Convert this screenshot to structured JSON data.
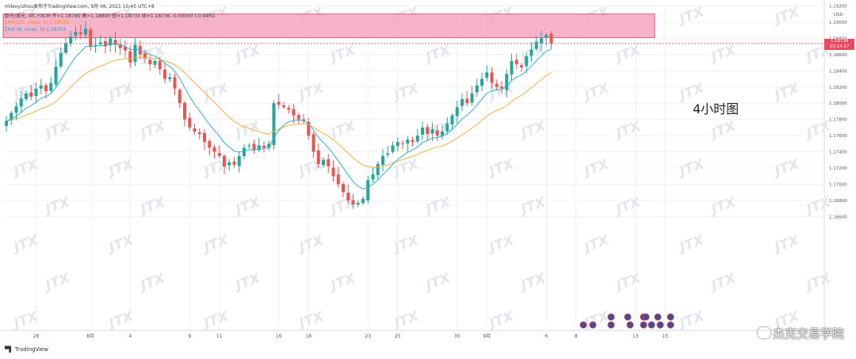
{
  "header": {
    "line1": "mileoyizhou发布于TradingView.com,  9月 06, 2021 10:45 UTC+8",
    "line2": "欧元/美元, 4h, FXCM  开=1.18780  高=1.18800  低=1.18733  收=1.18736  -0.00050 (-0.04%)",
    "line3": "EMA (21, close, 0)  1.18556",
    "line4": "EMA (8, close, 0)  1.18754"
  },
  "annotation": "4小时图",
  "watermark_brand": "杰克交易学院",
  "tv_logo": "TradingView",
  "currency_label": "USD",
  "price_tag": {
    "price": "1.18736",
    "countdown": "03:14:17"
  },
  "colors": {
    "up": "#26a69a",
    "down": "#ef5350",
    "ema_fast": "#2ab3c9",
    "ema_slow": "#f5b041",
    "zone_fill": "#f4a6c0",
    "zone_stroke": "#d13a66",
    "price_line": "#e84a5f",
    "grid": "#eef1f5"
  },
  "chart_data": {
    "type": "candlestick",
    "ylim": [
      1.1655,
      1.1935
    ],
    "y_ticks": [
      "1.19200",
      "1.19000",
      "1.18800",
      "1.18600",
      "1.18400",
      "1.18200",
      "1.18000",
      "1.17800",
      "1.17600",
      "1.17400",
      "1.17200",
      "1.17000",
      "1.16800",
      "1.16600"
    ],
    "x_ticks": [
      {
        "i": 6,
        "label": "28"
      },
      {
        "i": 17,
        "label": "8月"
      },
      {
        "i": 25,
        "label": "4"
      },
      {
        "i": 37,
        "label": "9"
      },
      {
        "i": 43,
        "label": "11"
      },
      {
        "i": 55,
        "label": "16"
      },
      {
        "i": 61,
        "label": "18"
      },
      {
        "i": 73,
        "label": "23"
      },
      {
        "i": 79,
        "label": "25"
      },
      {
        "i": 91,
        "label": "30"
      },
      {
        "i": 97,
        "label": "9月"
      },
      {
        "i": 109,
        "label": "6"
      },
      {
        "i": 115,
        "label": "8"
      },
      {
        "i": 127,
        "label": "13"
      },
      {
        "i": 133,
        "label": "15"
      }
    ],
    "resistance_zone": {
      "from": 1.1881,
      "to": 1.191
    },
    "last_price": 1.18736,
    "closes": [
      1.1778,
      1.1788,
      1.1796,
      1.1806,
      1.1812,
      1.1808,
      1.1818,
      1.1822,
      1.1815,
      1.1825,
      1.1845,
      1.1862,
      1.1874,
      1.1882,
      1.1888,
      1.1885,
      1.1892,
      1.187,
      1.1872,
      1.1875,
      1.187,
      1.188,
      1.1872,
      1.1868,
      1.1865,
      1.185,
      1.1872,
      1.186,
      1.1855,
      1.1848,
      1.1852,
      1.1842,
      1.183,
      1.1832,
      1.1818,
      1.18,
      1.178,
      1.177,
      1.1765,
      1.1762,
      1.1752,
      1.1745,
      1.174,
      1.1735,
      1.1722,
      1.1727,
      1.1724,
      1.1735,
      1.1745,
      1.1748,
      1.1742,
      1.1748,
      1.1745,
      1.175,
      1.18,
      1.1798,
      1.1795,
      1.1792,
      1.1785,
      1.178,
      1.1778,
      1.176,
      1.174,
      1.1725,
      1.173,
      1.1722,
      1.171,
      1.17,
      1.169,
      1.168,
      1.1675,
      1.1677,
      1.1682,
      1.1705,
      1.1712,
      1.1725,
      1.1735,
      1.1738,
      1.1748,
      1.1752,
      1.175,
      1.1755,
      1.1752,
      1.176,
      1.177,
      1.1762,
      1.1768,
      1.176,
      1.1765,
      1.1775,
      1.1785,
      1.1795,
      1.1805,
      1.18,
      1.1812,
      1.1822,
      1.183,
      1.1838,
      1.1825,
      1.182,
      1.1818,
      1.1836,
      1.1852,
      1.1848,
      1.1844,
      1.1858,
      1.1866,
      1.1876,
      1.188,
      1.1884,
      1.1874
    ]
  }
}
